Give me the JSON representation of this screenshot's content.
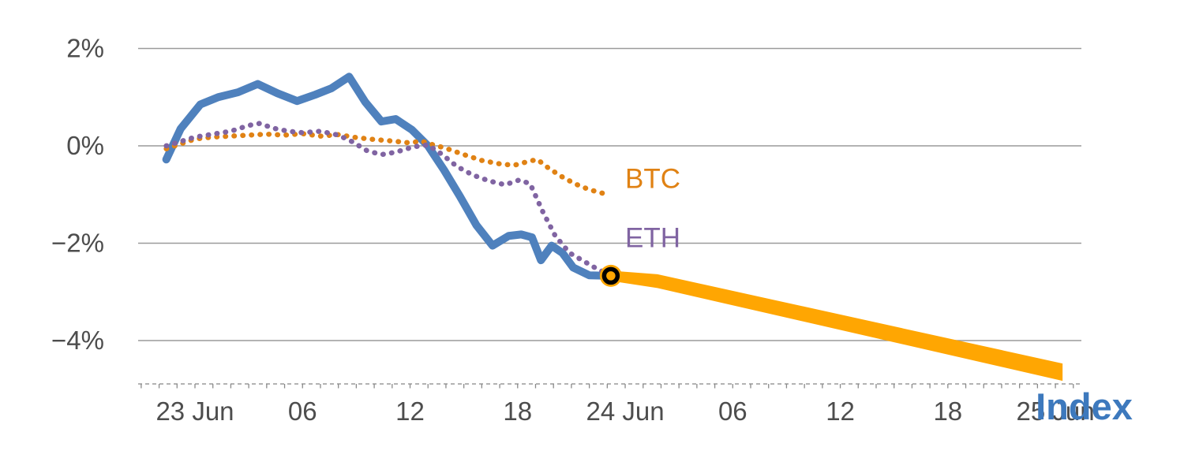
{
  "chart_data": {
    "type": "line",
    "title": "",
    "xlabel": "",
    "ylabel": "",
    "x_unit": "hours from 23 Jun 00:00",
    "xlim": [
      -3.2,
      49.6
    ],
    "ylim": [
      -4.9,
      2.2
    ],
    "grid": "horizontal",
    "legend_position": "inline-annotations",
    "x_ticks": [
      {
        "x": 0,
        "label": "23 Jun"
      },
      {
        "x": 6,
        "label": "06"
      },
      {
        "x": 12,
        "label": "12"
      },
      {
        "x": 18,
        "label": "18"
      },
      {
        "x": 24,
        "label": "24 Jun"
      },
      {
        "x": 30,
        "label": "06"
      },
      {
        "x": 36,
        "label": "12"
      },
      {
        "x": 42,
        "label": "18"
      },
      {
        "x": 48,
        "label": "25 Jun"
      }
    ],
    "y_ticks": [
      {
        "v": 2,
        "label": "2%"
      },
      {
        "v": 0,
        "label": "0%"
      },
      {
        "v": -2,
        "label": "−2%"
      },
      {
        "v": -4,
        "label": "−4%"
      }
    ],
    "series": [
      {
        "id": "index",
        "name": "Index",
        "color": "#4f81bd",
        "style": "solid",
        "points": [
          [
            -1.6,
            -0.28
          ],
          [
            -0.8,
            0.35
          ],
          [
            0.3,
            0.85
          ],
          [
            1.3,
            1.0
          ],
          [
            2.4,
            1.1
          ],
          [
            3.5,
            1.27
          ],
          [
            4.6,
            1.08
          ],
          [
            5.7,
            0.92
          ],
          [
            6.7,
            1.05
          ],
          [
            7.6,
            1.18
          ],
          [
            8.6,
            1.42
          ],
          [
            9.5,
            0.9
          ],
          [
            10.4,
            0.5
          ],
          [
            11.2,
            0.55
          ],
          [
            12.1,
            0.33
          ],
          [
            13.0,
            0.0
          ],
          [
            13.9,
            -0.5
          ],
          [
            14.8,
            -1.05
          ],
          [
            15.7,
            -1.63
          ],
          [
            16.6,
            -2.05
          ],
          [
            17.5,
            -1.85
          ],
          [
            18.2,
            -1.82
          ],
          [
            18.8,
            -1.88
          ],
          [
            19.3,
            -2.35
          ],
          [
            19.9,
            -2.05
          ],
          [
            20.5,
            -2.2
          ],
          [
            21.1,
            -2.5
          ],
          [
            22.0,
            -2.66
          ],
          [
            23.2,
            -2.67
          ]
        ]
      },
      {
        "id": "btc",
        "name": "BTC",
        "color": "#e08214",
        "style": "dotted",
        "points": [
          [
            -1.6,
            -0.06
          ],
          [
            0,
            0.14
          ],
          [
            1,
            0.18
          ],
          [
            2,
            0.2
          ],
          [
            3,
            0.22
          ],
          [
            4,
            0.24
          ],
          [
            5,
            0.22
          ],
          [
            6,
            0.25
          ],
          [
            7,
            0.2
          ],
          [
            8,
            0.23
          ],
          [
            9,
            0.17
          ],
          [
            10,
            0.13
          ],
          [
            11,
            0.1
          ],
          [
            12,
            0.06
          ],
          [
            12.6,
            0.1
          ],
          [
            13.3,
            0.02
          ],
          [
            14,
            -0.05
          ],
          [
            15,
            -0.18
          ],
          [
            16,
            -0.3
          ],
          [
            17,
            -0.37
          ],
          [
            17.8,
            -0.4
          ],
          [
            18.6,
            -0.32
          ],
          [
            19.1,
            -0.28
          ],
          [
            19.7,
            -0.45
          ],
          [
            20.4,
            -0.62
          ],
          [
            21.2,
            -0.78
          ],
          [
            22,
            -0.9
          ],
          [
            22.8,
            -0.98
          ]
        ]
      },
      {
        "id": "eth",
        "name": "ETH",
        "color": "#8064a2",
        "style": "dotted",
        "points": [
          [
            -1.6,
            0.0
          ],
          [
            0,
            0.18
          ],
          [
            1,
            0.24
          ],
          [
            2,
            0.3
          ],
          [
            3,
            0.42
          ],
          [
            3.6,
            0.46
          ],
          [
            4.4,
            0.36
          ],
          [
            5.2,
            0.3
          ],
          [
            6,
            0.27
          ],
          [
            7,
            0.3
          ],
          [
            8,
            0.22
          ],
          [
            8.8,
            0.08
          ],
          [
            9.6,
            -0.1
          ],
          [
            10.4,
            -0.18
          ],
          [
            11.2,
            -0.13
          ],
          [
            12.2,
            -0.02
          ],
          [
            13,
            0.02
          ],
          [
            13.8,
            -0.18
          ],
          [
            14.6,
            -0.42
          ],
          [
            15.5,
            -0.6
          ],
          [
            16.4,
            -0.72
          ],
          [
            17.3,
            -0.8
          ],
          [
            18.1,
            -0.7
          ],
          [
            18.7,
            -0.78
          ],
          [
            19.4,
            -1.35
          ],
          [
            20.1,
            -1.85
          ],
          [
            20.9,
            -2.2
          ],
          [
            22.3,
            -2.5
          ],
          [
            23.2,
            -2.67
          ]
        ]
      },
      {
        "id": "index-forecast",
        "name": "Index forecast",
        "color": "#ffa602",
        "style": "taper",
        "points": [
          [
            23.2,
            -2.67
          ],
          [
            25.8,
            -2.78
          ],
          [
            48.4,
            -4.65
          ]
        ]
      }
    ],
    "marker": {
      "x": 23.2,
      "y": -2.67,
      "fill": "#ffa602",
      "ring": "#000000"
    },
    "annotations": {
      "btc": {
        "text": "BTC",
        "x": 24.0,
        "y": -0.72,
        "color": "#e08214"
      },
      "eth": {
        "text": "ETH",
        "x": 24.0,
        "y": -1.93,
        "color": "#8064a2"
      },
      "index": {
        "text": "Index",
        "x": 46.9,
        "y": -5.42,
        "color": "#3d79bd"
      }
    }
  },
  "colors": {
    "background": "#ffffff",
    "gridline": "#9a9a9a",
    "axis_text": "#4d4d4d",
    "index_line": "#4f81bd",
    "btc_line": "#e08214",
    "eth_line": "#8064a2",
    "forecast_line": "#ffa602",
    "marker_ring": "#000000"
  }
}
